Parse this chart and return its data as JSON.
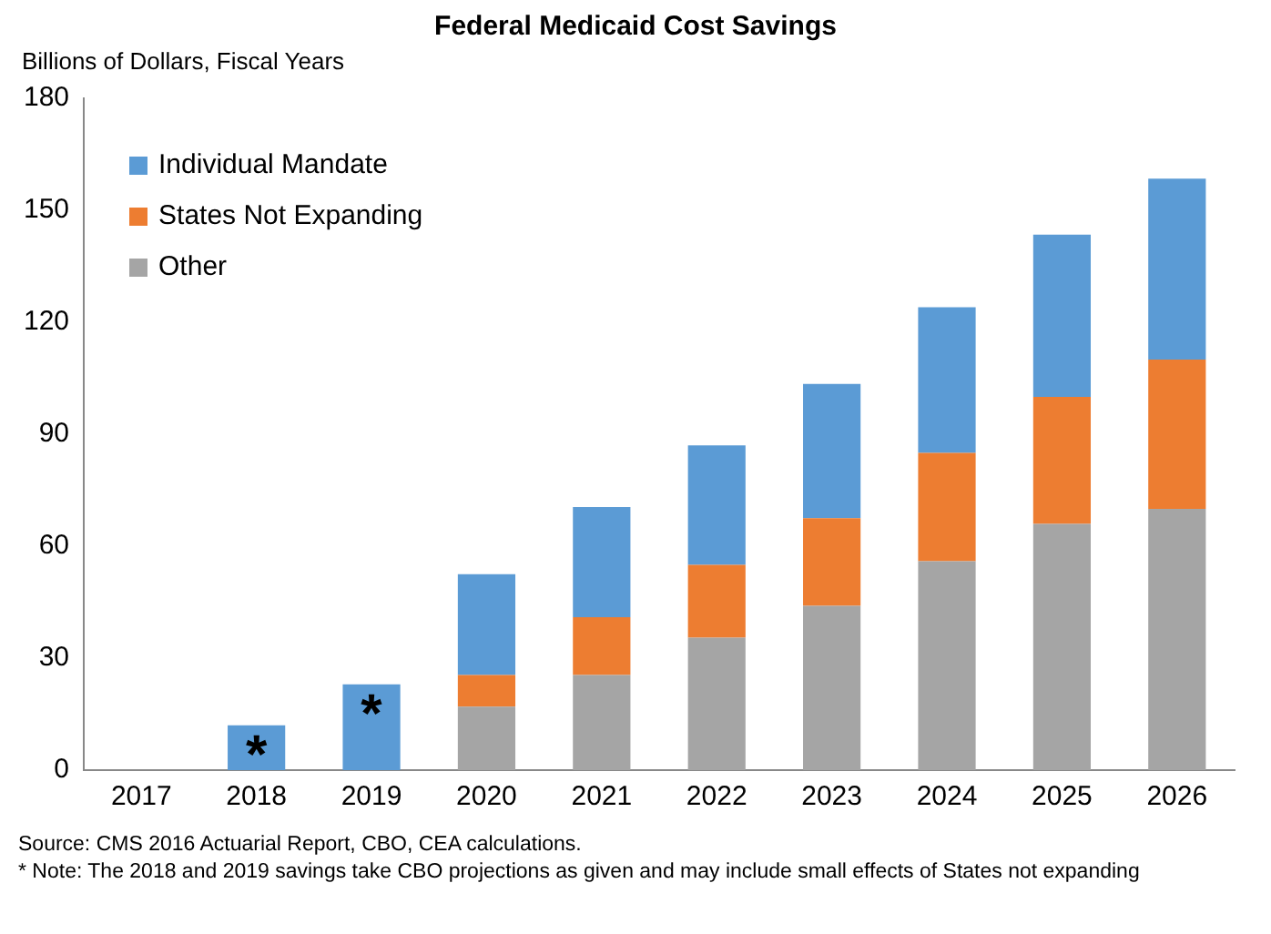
{
  "chart_data": {
    "type": "bar",
    "stacked": true,
    "title": "Federal Medicaid Cost Savings",
    "ylabel": "Billions of Dollars, Fiscal Years",
    "categories": [
      "2017",
      "2018",
      "2019",
      "2020",
      "2021",
      "2022",
      "2023",
      "2024",
      "2025",
      "2026"
    ],
    "series": [
      {
        "name": "Other",
        "color": "#a5a5a5",
        "values": [
          null,
          null,
          null,
          17,
          25.5,
          35.5,
          44,
          56,
          66,
          70
        ]
      },
      {
        "name": "States Not Expanding",
        "color": "#ed7d31",
        "values": [
          null,
          null,
          null,
          8.5,
          15.5,
          19.5,
          23.5,
          29,
          34,
          40
        ]
      },
      {
        "name": "Individual Mandate",
        "color": "#5b9bd5",
        "values": [
          null,
          12,
          23,
          27,
          29.5,
          32,
          36,
          39,
          43.5,
          48.5
        ]
      }
    ],
    "ylim": [
      0,
      180
    ],
    "yticks": [
      0,
      30,
      60,
      90,
      120,
      150,
      180
    ],
    "grid": false,
    "legend": "top left",
    "annotations": [
      {
        "text": "*",
        "x": "2018",
        "y": 12
      },
      {
        "text": "*",
        "x": "2019",
        "y": 23
      },
      "Source: CMS 2016 Actuarial Report, CBO, CEA calculations.",
      "* Note: The 2018 and 2019 savings take CBO projections as given and may include small effects of States not expanding"
    ]
  }
}
